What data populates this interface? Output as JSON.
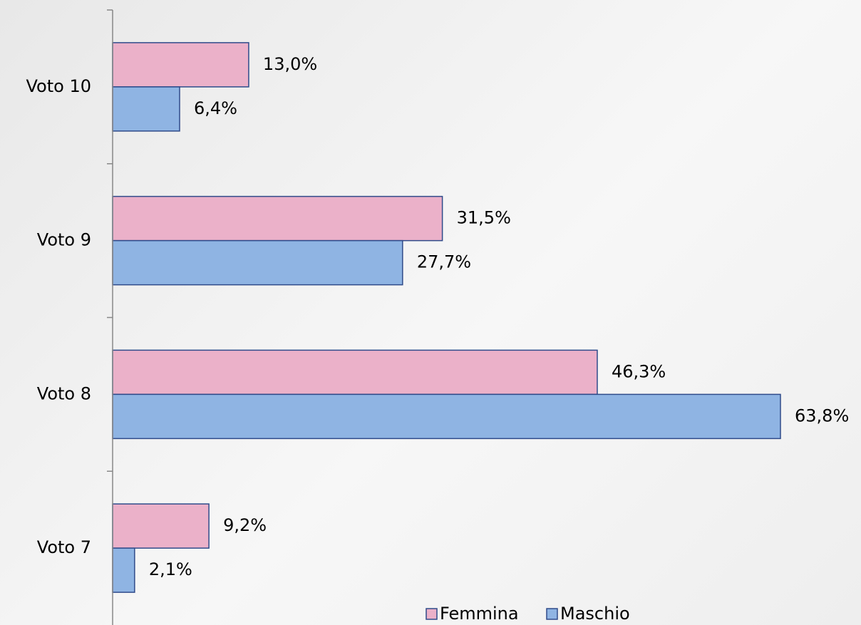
{
  "chart_data": {
    "type": "hbar",
    "categories": [
      "Voto 10",
      "Voto 9",
      "Voto 8",
      "Voto 7"
    ],
    "series": [
      {
        "name": "Femmina",
        "color": "#ebb1c9",
        "values": [
          13.0,
          31.5,
          46.3,
          9.2
        ],
        "value_labels": [
          "13,0%",
          "31,5%",
          "46,3%",
          "9,2%"
        ]
      },
      {
        "name": "Maschio",
        "color": "#8fb4e3",
        "values": [
          6.4,
          27.7,
          63.8,
          2.1
        ],
        "value_labels": [
          "6,4%",
          "27,7%",
          "63,8%",
          "2,1%"
        ]
      }
    ],
    "legend": "bottom"
  }
}
